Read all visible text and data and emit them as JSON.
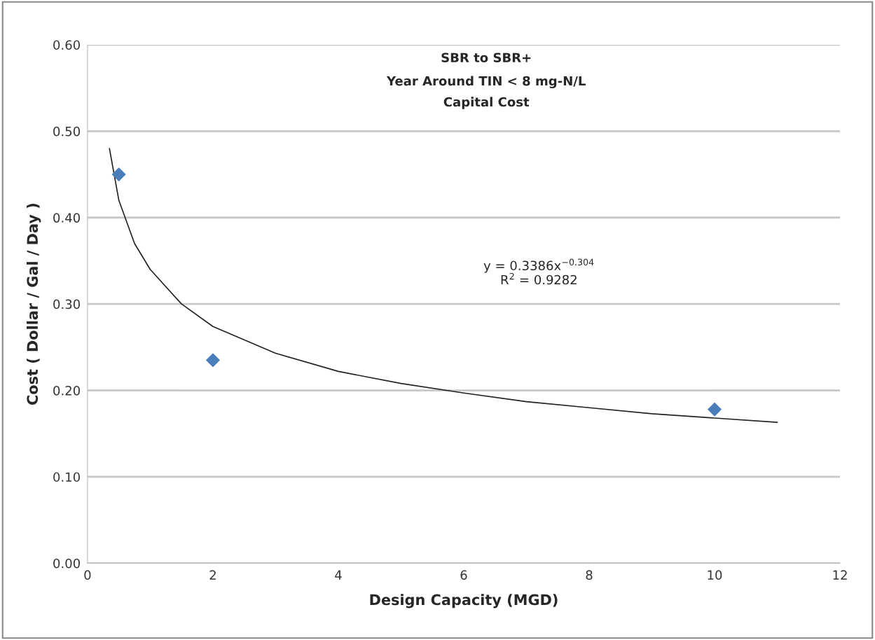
{
  "chart_data": {
    "type": "scatter",
    "title": "SBR to SBR+",
    "subtitle": "Year Around TIN < 8 mg-N/L\nCapital Cost",
    "xlabel": "Design Capacity (MGD)",
    "ylabel": "Cost ( Dollar / Gal / Day )",
    "series": [
      {
        "color": "#4a7ebb",
        "marker": "diamond",
        "x": [
          0.5,
          2,
          10
        ],
        "values": [
          0.45,
          0.235,
          0.178
        ]
      },
      {
        "type": "line",
        "color": "#222222",
        "marker": "none",
        "line_style": "solid",
        "x": [
          0.35,
          0.5,
          0.75,
          1,
          1.5,
          2,
          3,
          4,
          5,
          6,
          7,
          8,
          9,
          10,
          11
        ],
        "values": [
          0.48,
          0.42,
          0.37,
          0.34,
          0.3,
          0.274,
          0.243,
          0.222,
          0.208,
          0.197,
          0.187,
          0.18,
          0.173,
          0.168,
          0.163
        ]
      }
    ],
    "annotations": [
      "y = 0.3386x$^{−0.304}$\nR$^{2}$ = 0.9282"
    ],
    "xlim": [
      0,
      12
    ],
    "ylim": [
      0,
      0.6
    ],
    "xticks": [
      0,
      2,
      4,
      6,
      8,
      10,
      12
    ],
    "yticks": [
      {
        "value": 0,
        "label": "0.00"
      },
      {
        "value": 0.1,
        "label": "0.10"
      },
      {
        "value": 0.2,
        "label": "0.20"
      },
      {
        "value": 0.3,
        "label": "0.30"
      },
      {
        "value": 0.4,
        "label": "0.40"
      },
      {
        "value": 0.5,
        "label": "0.50"
      },
      {
        "value": 0.6,
        "label": "0.60"
      }
    ],
    "grid": "y",
    "legend": false
  }
}
